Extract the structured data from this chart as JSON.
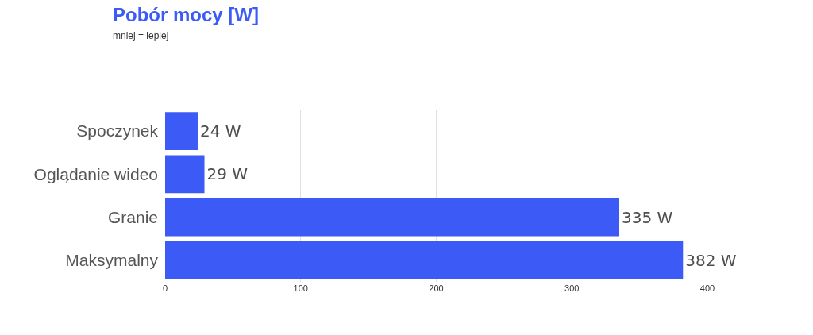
{
  "chart_data": {
    "type": "bar",
    "orientation": "horizontal",
    "title": "Pobór mocy [W]",
    "subtitle": "mniej = lepiej",
    "categories": [
      "Spoczynek",
      "Oglądanie wideo",
      "Granie",
      "Maksymalny"
    ],
    "values": [
      24,
      29,
      335,
      382
    ],
    "color": "#3c5af5",
    "value_labels": [
      "24 W",
      "29 W",
      "335 W",
      "382 W"
    ],
    "xlim": [
      0,
      400
    ],
    "xticks": [
      0,
      100,
      200,
      300,
      400
    ],
    "grid": "x",
    "legend": false
  }
}
